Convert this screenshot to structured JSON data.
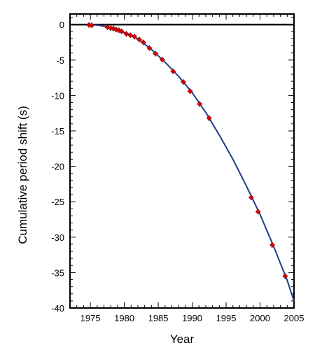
{
  "chart_data": {
    "type": "scatter",
    "xlabel": "Year",
    "ylabel": "Cumulative period shift (s)",
    "xlim": [
      1972,
      2005
    ],
    "ylim": [
      -40,
      1.5
    ],
    "xticks": [
      1975,
      1980,
      1985,
      1990,
      1995,
      2000,
      2005
    ],
    "yticks": [
      0,
      -5,
      -10,
      -15,
      -20,
      -25,
      -30,
      -35,
      -40
    ],
    "x_minor_step": 1,
    "y_minor_step": 1,
    "grid": false,
    "zero_line": true,
    "series": [
      {
        "kind": "points",
        "color": "#e00000",
        "points": [
          {
            "x": 1974.8,
            "y": -0.05
          },
          {
            "x": 1975.2,
            "y": -0.1
          },
          {
            "x": 1977.5,
            "y": -0.35
          },
          {
            "x": 1978.0,
            "y": -0.5
          },
          {
            "x": 1978.4,
            "y": -0.55
          },
          {
            "x": 1978.8,
            "y": -0.7
          },
          {
            "x": 1979.2,
            "y": -0.8
          },
          {
            "x": 1979.6,
            "y": -0.95
          },
          {
            "x": 1980.3,
            "y": -1.3
          },
          {
            "x": 1980.9,
            "y": -1.5
          },
          {
            "x": 1981.5,
            "y": -1.7
          },
          {
            "x": 1982.2,
            "y": -2.1
          },
          {
            "x": 1982.8,
            "y": -2.5
          },
          {
            "x": 1983.7,
            "y": -3.3
          },
          {
            "x": 1984.6,
            "y": -4.1
          },
          {
            "x": 1985.6,
            "y": -4.95
          },
          {
            "x": 1987.2,
            "y": -6.6
          },
          {
            "x": 1988.7,
            "y": -8.1
          },
          {
            "x": 1989.7,
            "y": -9.4
          },
          {
            "x": 1991.1,
            "y": -11.2
          },
          {
            "x": 1992.5,
            "y": -13.2
          },
          {
            "x": 1998.7,
            "y": -24.4
          },
          {
            "x": 1999.7,
            "y": -26.4
          },
          {
            "x": 2001.8,
            "y": -31.1
          },
          {
            "x": 2003.7,
            "y": -35.5
          }
        ]
      },
      {
        "kind": "curve",
        "color": "#1f3c88",
        "points": [
          {
            "x": 1974.8,
            "y": 0.0
          },
          {
            "x": 1976.0,
            "y": -0.05
          },
          {
            "x": 1978.0,
            "y": -0.4
          },
          {
            "x": 1980.0,
            "y": -1.15
          },
          {
            "x": 1982.0,
            "y": -2.0
          },
          {
            "x": 1984.0,
            "y": -3.5
          },
          {
            "x": 1986.0,
            "y": -5.3
          },
          {
            "x": 1988.0,
            "y": -7.3
          },
          {
            "x": 1990.0,
            "y": -9.6
          },
          {
            "x": 1992.0,
            "y": -12.4
          },
          {
            "x": 1994.0,
            "y": -15.6
          },
          {
            "x": 1996.0,
            "y": -19.0
          },
          {
            "x": 1998.0,
            "y": -22.8
          },
          {
            "x": 2000.0,
            "y": -26.8
          },
          {
            "x": 2002.0,
            "y": -31.3
          },
          {
            "x": 2004.0,
            "y": -36.1
          },
          {
            "x": 2005.0,
            "y": -39.0
          }
        ]
      }
    ]
  }
}
